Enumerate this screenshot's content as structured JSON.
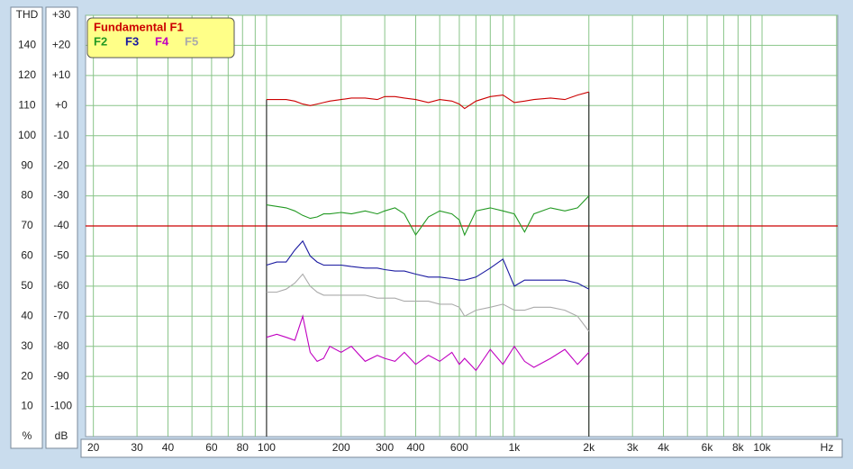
{
  "chart_data": {
    "type": "line",
    "x_unit_label": "Hz",
    "y_unit_label": "dB",
    "thd_header": "THD",
    "thd_unit_label": "%",
    "x": [
      100,
      110,
      120,
      130,
      140,
      150,
      160,
      170,
      180,
      200,
      220,
      250,
      280,
      300,
      330,
      360,
      400,
      450,
      500,
      560,
      600,
      630,
      700,
      800,
      900,
      1000,
      1100,
      1200,
      1400,
      1600,
      1800,
      2000
    ],
    "series": [
      {
        "name": "Fundamental F1",
        "color": "#cc0000",
        "values": [
          2,
          2,
          2,
          1.5,
          0.5,
          0,
          0.5,
          1,
          1.5,
          2,
          2.5,
          2.5,
          2,
          3,
          3,
          2.5,
          2,
          1,
          2,
          1.5,
          0.5,
          -1,
          1.5,
          3,
          3.5,
          1,
          1.5,
          2,
          2.5,
          2,
          3.5,
          4.5
        ]
      },
      {
        "name": "F2",
        "color": "#229922",
        "values": [
          -33,
          -33.5,
          -34,
          -35,
          -36.5,
          -37.5,
          -37,
          -36,
          -36,
          -35.5,
          -36,
          -35,
          -36,
          -35,
          -34,
          -36,
          -43,
          -37,
          -35,
          -36,
          -38,
          -43,
          -35,
          -34,
          -35,
          -36,
          -42,
          -36,
          -34,
          -35,
          -34,
          -30
        ]
      },
      {
        "name": "F3",
        "color": "#1a1aa0",
        "values": [
          -53,
          -52,
          -52,
          -48,
          -45,
          -50,
          -52,
          -53,
          -53,
          -53,
          -53.5,
          -54,
          -54,
          -54.5,
          -55,
          -55,
          -56,
          -57,
          -57,
          -57.5,
          -58,
          -58,
          -57,
          -54,
          -51,
          -60,
          -58,
          -58,
          -58,
          -58,
          -59,
          -61
        ]
      },
      {
        "name": "F4",
        "color": "#c000c0",
        "values": [
          -77,
          -76,
          -77,
          -78,
          -70,
          -82,
          -85,
          -84,
          -80,
          -82,
          -80,
          -85,
          -83,
          -84,
          -85,
          -82,
          -86,
          -83,
          -85,
          -82,
          -86,
          -84,
          -88,
          -81,
          -86,
          -80,
          -85,
          -87,
          -84,
          -81,
          -86,
          -82
        ]
      },
      {
        "name": "F5",
        "color": "#aaaaaa",
        "values": [
          -62,
          -62,
          -61,
          -59,
          -56,
          -60,
          -62,
          -63,
          -63,
          -63,
          -63,
          -63,
          -64,
          -64,
          -64,
          -65,
          -65,
          -65,
          -66,
          -66,
          -67,
          -70,
          -68,
          -67,
          -66,
          -68,
          -68,
          -67,
          -67,
          -68,
          -70,
          -75
        ]
      }
    ],
    "xlim": [
      18.6,
      20200
    ],
    "x_log": true,
    "xticks": [
      20,
      30,
      40,
      60,
      80,
      100,
      200,
      300,
      400,
      600,
      {
        "value": 1000,
        "label": "1k"
      },
      {
        "value": 2000,
        "label": "2k"
      },
      {
        "value": 3000,
        "label": "3k"
      },
      {
        "value": 4000,
        "label": "4k"
      },
      {
        "value": 6000,
        "label": "6k"
      },
      {
        "value": 8000,
        "label": "8k"
      },
      {
        "value": 10000,
        "label": "10k"
      }
    ],
    "x_minor_grid": [
      50,
      70,
      90,
      500,
      700,
      800,
      900,
      5000,
      7000,
      9000,
      20000
    ],
    "ylim": [
      -110,
      30
    ],
    "yticks": [
      {
        "value": 30,
        "label": "+30"
      },
      {
        "value": 20,
        "label": "+20"
      },
      {
        "value": 10,
        "label": "+10"
      },
      {
        "value": 0,
        "label": "+0"
      },
      -10,
      -20,
      -30,
      -40,
      -50,
      -60,
      -70,
      -80,
      -90,
      -100
    ],
    "thd_ticks": [
      140,
      120,
      110,
      100,
      90,
      80,
      70,
      60,
      50,
      40,
      30,
      20,
      10
    ],
    "reference_line": {
      "value": -40,
      "color": "#cc0000"
    },
    "measurement_range": [
      100,
      2000
    ],
    "grid": true,
    "grid_color": "#88c488",
    "legend_position": "top-left"
  }
}
